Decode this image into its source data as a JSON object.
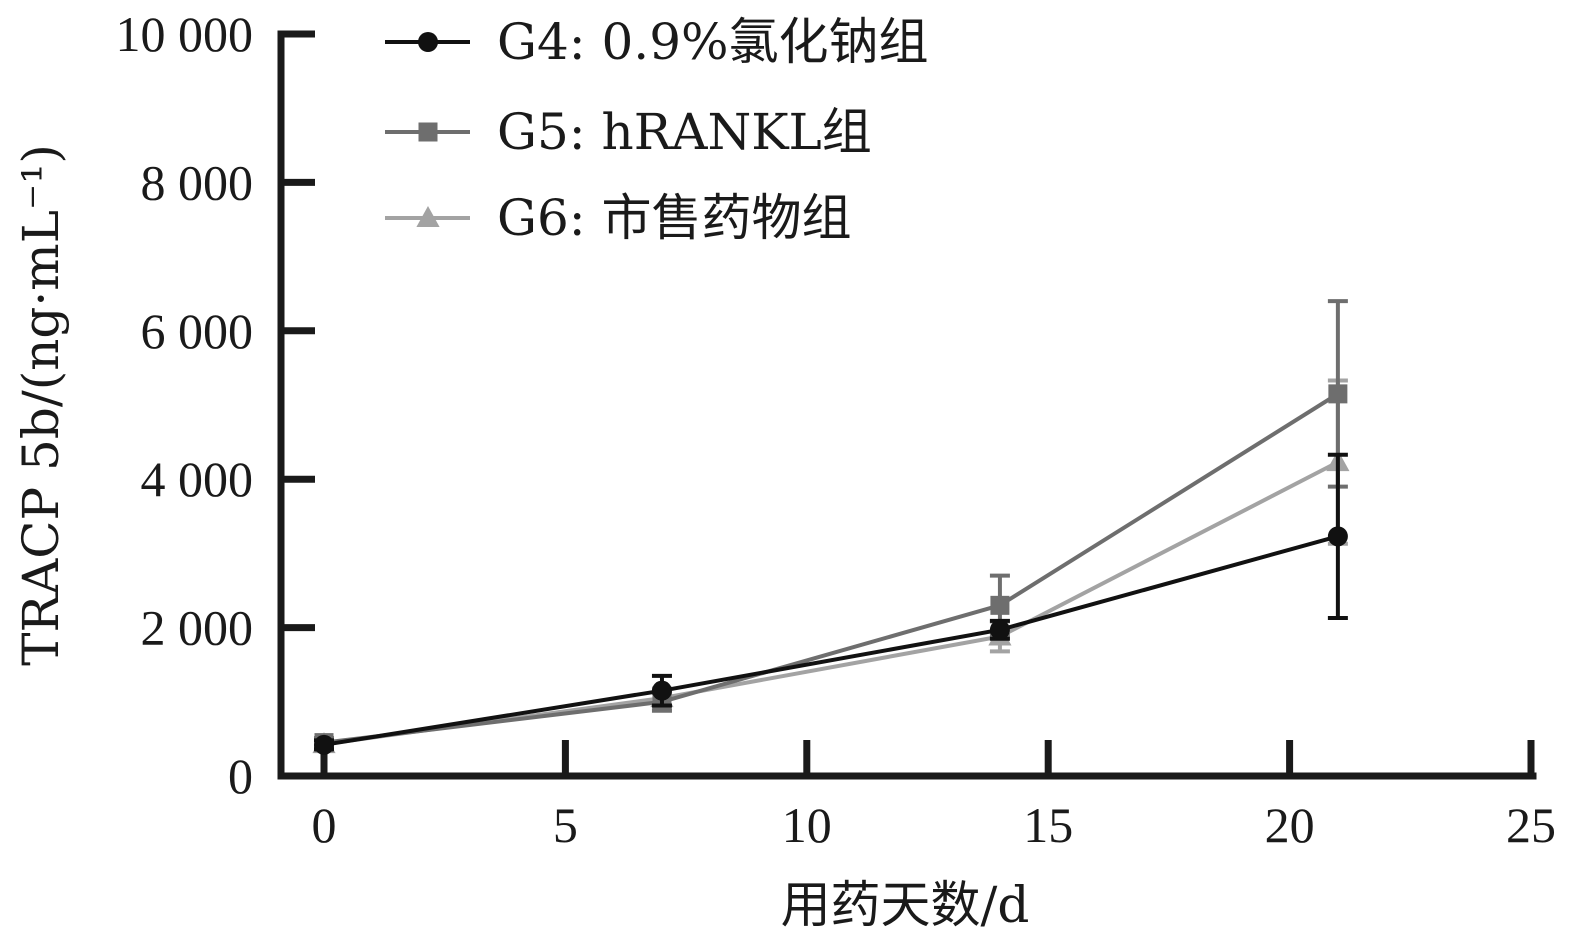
{
  "chart_data": {
    "type": "line",
    "title": "",
    "xlabel": "用药天数/d",
    "ylabel": "TRACP 5b/(ng·mL⁻¹)",
    "xlim": [
      0,
      25
    ],
    "ylim": [
      0,
      10000
    ],
    "x_ticks": [
      0,
      5,
      10,
      15,
      20,
      25
    ],
    "x_tick_labels": [
      "0",
      "5",
      "10",
      "15",
      "20",
      "25"
    ],
    "y_ticks": [
      0,
      2000,
      4000,
      6000,
      8000,
      10000
    ],
    "y_tick_labels": [
      "0",
      "2 000",
      "4 000",
      "6 000",
      "8 000",
      "10 000"
    ],
    "grid": false,
    "legend_position": "top-left",
    "series": [
      {
        "name": "G4: 0.9%氯化钠组",
        "marker": "circle",
        "color": "#111111",
        "x": [
          0,
          7,
          14,
          21
        ],
        "y": [
          420,
          1150,
          1970,
          3230
        ],
        "error": [
          60,
          200,
          120,
          1100
        ]
      },
      {
        "name": "G5: hRANKL组",
        "marker": "square",
        "color": "#6e6e6e",
        "x": [
          0,
          7,
          14,
          21
        ],
        "y": [
          450,
          1000,
          2300,
          5150
        ],
        "error": [
          60,
          120,
          400,
          1250
        ]
      },
      {
        "name": "G6: 市售药物组",
        "marker": "triangle",
        "color": "#a3a3a3",
        "x": [
          0,
          7,
          14,
          21
        ],
        "y": [
          430,
          1050,
          1880,
          4230
        ],
        "error": [
          60,
          130,
          200,
          1100
        ]
      }
    ]
  }
}
